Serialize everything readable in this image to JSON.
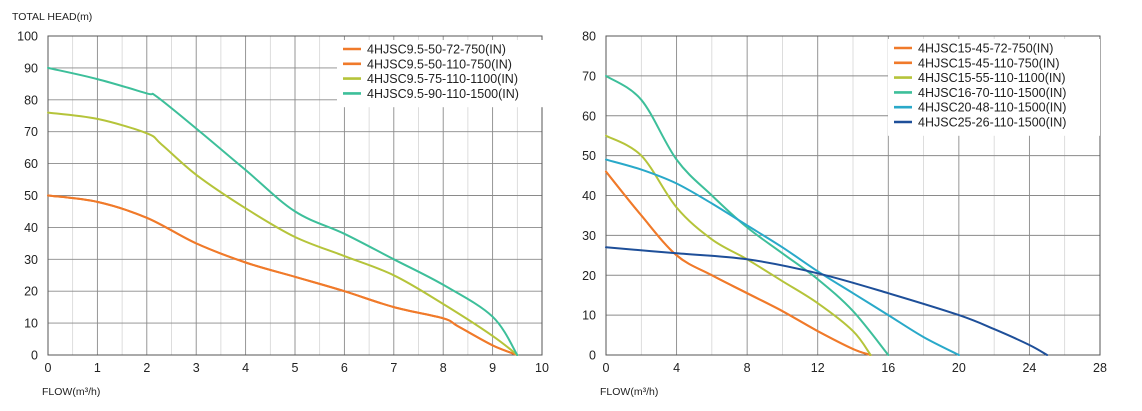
{
  "chart_data": [
    {
      "type": "line",
      "title": "",
      "ylabel": "TOTAL HEAD(m)",
      "xlabel": "FLOW(m³/h)",
      "xlim": [
        0,
        10
      ],
      "ylim": [
        0,
        100
      ],
      "xticks": [
        0,
        1,
        2,
        3,
        4,
        5,
        6,
        7,
        8,
        9,
        10
      ],
      "yticks": [
        0,
        10,
        20,
        30,
        40,
        50,
        60,
        70,
        80,
        90,
        100
      ],
      "x_minor_step": 0.5,
      "grid": true,
      "legend_position": "top-right",
      "series": [
        {
          "name": "4HJSC9.5-50-72-750(IN)",
          "color": "#f07a2a",
          "points": [
            [
              0,
              50
            ],
            [
              1,
              48
            ],
            [
              2,
              43
            ],
            [
              3,
              35
            ],
            [
              4,
              29
            ],
            [
              5,
              24.5
            ],
            [
              6,
              20
            ],
            [
              7,
              15
            ],
            [
              8,
              11.5
            ],
            [
              8.3,
              9
            ],
            [
              9,
              3
            ],
            [
              9.5,
              0
            ]
          ]
        },
        {
          "name": "4HJSC9.5-50-110-750(IN)",
          "color": "#f07a2a",
          "points": [
            [
              0,
              50
            ],
            [
              1,
              48
            ],
            [
              2,
              43
            ],
            [
              3,
              35
            ],
            [
              4,
              29
            ],
            [
              5,
              24.5
            ],
            [
              6,
              20
            ],
            [
              7,
              15
            ],
            [
              8,
              11.5
            ],
            [
              8.3,
              9
            ],
            [
              9,
              3
            ],
            [
              9.5,
              0
            ]
          ]
        },
        {
          "name": "4HJSC9.5-75-110-1100(IN)",
          "color": "#b5c43a",
          "points": [
            [
              0,
              76
            ],
            [
              1,
              74
            ],
            [
              2,
              69.5
            ],
            [
              2.3,
              66
            ],
            [
              3,
              56.5
            ],
            [
              4,
              46
            ],
            [
              5,
              37
            ],
            [
              6,
              31
            ],
            [
              7,
              25
            ],
            [
              8,
              16
            ],
            [
              9,
              6
            ],
            [
              9.5,
              0
            ]
          ]
        },
        {
          "name": "4HJSC9.5-90-110-1500(IN)",
          "color": "#3dbf9a",
          "points": [
            [
              0,
              90
            ],
            [
              1,
              86.5
            ],
            [
              2,
              82
            ],
            [
              2.2,
              81
            ],
            [
              3,
              71
            ],
            [
              4,
              58
            ],
            [
              5,
              45
            ],
            [
              6,
              38
            ],
            [
              7,
              30
            ],
            [
              8,
              22
            ],
            [
              9,
              12
            ],
            [
              9.5,
              0
            ]
          ]
        }
      ]
    },
    {
      "type": "line",
      "title": "",
      "ylabel": "",
      "xlabel": "FLOW(m³/h)",
      "xlim": [
        0,
        28
      ],
      "ylim": [
        0,
        80
      ],
      "xticks": [
        0,
        4,
        8,
        12,
        16,
        20,
        24,
        28
      ],
      "yticks": [
        0,
        10,
        20,
        30,
        40,
        50,
        60,
        70,
        80
      ],
      "x_minor_step": 2,
      "grid": true,
      "legend_position": "top-right",
      "series": [
        {
          "name": "4HJSC15-45-72-750(IN)",
          "color": "#f07a2a",
          "points": [
            [
              0,
              46
            ],
            [
              2,
              35
            ],
            [
              4,
              25
            ],
            [
              6,
              20
            ],
            [
              8,
              15.5
            ],
            [
              10,
              11
            ],
            [
              12,
              6
            ],
            [
              14,
              1.5
            ],
            [
              15,
              0
            ]
          ]
        },
        {
          "name": "4HJSC15-45-110-750(IN)",
          "color": "#f07a2a",
          "points": [
            [
              0,
              46
            ],
            [
              2,
              35
            ],
            [
              4,
              25
            ],
            [
              6,
              20
            ],
            [
              8,
              15.5
            ],
            [
              10,
              11
            ],
            [
              12,
              6
            ],
            [
              14,
              1.5
            ],
            [
              15,
              0
            ]
          ]
        },
        {
          "name": "4HJSC15-55-110-1100(IN)",
          "color": "#b5c43a",
          "points": [
            [
              0,
              55
            ],
            [
              2,
              50
            ],
            [
              4,
              37
            ],
            [
              6,
              29
            ],
            [
              8,
              24
            ],
            [
              10,
              18.5
            ],
            [
              12,
              13
            ],
            [
              14,
              6
            ],
            [
              15,
              0
            ]
          ]
        },
        {
          "name": "4HJSC16-70-110-1500(IN)",
          "color": "#3dbf9a",
          "points": [
            [
              0,
              70
            ],
            [
              2,
              64
            ],
            [
              4,
              49
            ],
            [
              6,
              40
            ],
            [
              8,
              32
            ],
            [
              10,
              25.5
            ],
            [
              12,
              19
            ],
            [
              14,
              11
            ],
            [
              16,
              0
            ]
          ]
        },
        {
          "name": "4HJSC20-48-110-1500(IN)",
          "color": "#29a9c9",
          "points": [
            [
              0,
              49
            ],
            [
              2,
              46.5
            ],
            [
              4,
              43
            ],
            [
              6,
              38
            ],
            [
              8,
              32.5
            ],
            [
              10,
              27
            ],
            [
              12,
              21
            ],
            [
              14,
              15.5
            ],
            [
              16,
              10
            ],
            [
              18,
              4.5
            ],
            [
              20,
              0
            ]
          ]
        },
        {
          "name": "4HJSC25-26-110-1500(IN)",
          "color": "#1e4f99",
          "points": [
            [
              0,
              27
            ],
            [
              4,
              25.5
            ],
            [
              8,
              24
            ],
            [
              12,
              20.5
            ],
            [
              16,
              15.5
            ],
            [
              20,
              10
            ],
            [
              22,
              6.5
            ],
            [
              24,
              2.5
            ],
            [
              25,
              0
            ]
          ]
        }
      ]
    }
  ]
}
